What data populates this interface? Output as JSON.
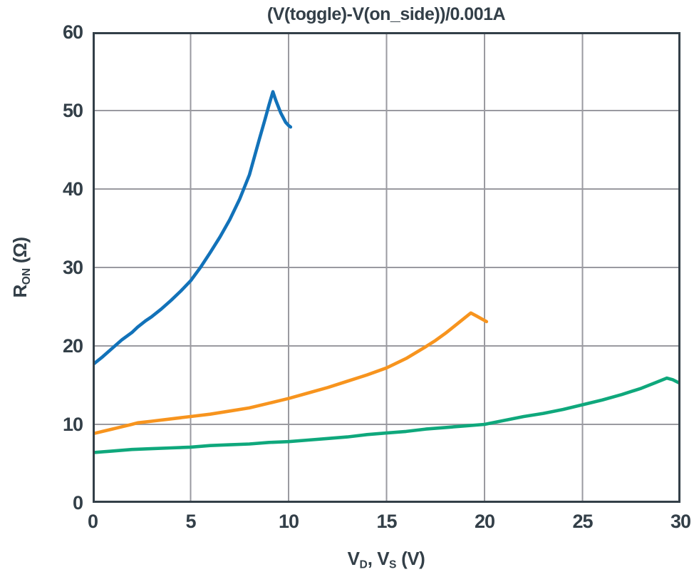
{
  "chart_data": {
    "type": "line",
    "title": "(V(toggle)-V(on_side))/0.001A",
    "ylabel_parts": {
      "main": "R",
      "sub": "ON",
      "rest": " (Ω)"
    },
    "xlabel_parts": {
      "v1": "V",
      "s1": "D",
      "mid": ", V",
      "s2": "S",
      "rest": " (V)"
    },
    "xlim": [
      0,
      30
    ],
    "ylim": [
      0,
      60
    ],
    "xticks": [
      0,
      5,
      10,
      15,
      20,
      25,
      30
    ],
    "yticks": [
      0,
      10,
      20,
      30,
      40,
      50,
      60
    ],
    "grid": true,
    "legend": "none",
    "colors": {
      "axis": "#333F48",
      "grid": "#9A9AA0",
      "text": "#333F48",
      "background": "#FFFFFF"
    },
    "series": [
      {
        "name": "blue-curve",
        "color": "#1272B9",
        "points": [
          [
            0,
            17.6
          ],
          [
            0.5,
            18.6
          ],
          [
            1,
            19.7
          ],
          [
            1.5,
            20.8
          ],
          [
            2,
            21.7
          ],
          [
            2.3,
            22.4
          ],
          [
            2.7,
            23.2
          ],
          [
            3,
            23.7
          ],
          [
            3.5,
            24.7
          ],
          [
            4,
            25.8
          ],
          [
            4.5,
            27.0
          ],
          [
            5,
            28.3
          ],
          [
            5.5,
            30.0
          ],
          [
            6,
            31.9
          ],
          [
            6.5,
            33.9
          ],
          [
            7,
            36.1
          ],
          [
            7.5,
            38.7
          ],
          [
            8,
            41.8
          ],
          [
            8.5,
            46.3
          ],
          [
            8.8,
            48.9
          ],
          [
            9,
            50.7
          ],
          [
            9.2,
            52.4
          ],
          [
            9.35,
            51.3
          ],
          [
            9.6,
            49.7
          ],
          [
            9.85,
            48.5
          ],
          [
            10,
            48.1
          ],
          [
            10.1,
            47.9
          ]
        ]
      },
      {
        "name": "orange-curve",
        "color": "#F7941E",
        "points": [
          [
            0,
            8.8
          ],
          [
            0.5,
            9.1
          ],
          [
            1,
            9.4
          ],
          [
            1.5,
            9.7
          ],
          [
            2,
            10.0
          ],
          [
            2.3,
            10.2
          ],
          [
            3,
            10.4
          ],
          [
            4,
            10.7
          ],
          [
            5,
            11.0
          ],
          [
            6,
            11.3
          ],
          [
            7,
            11.7
          ],
          [
            8,
            12.1
          ],
          [
            9,
            12.7
          ],
          [
            10,
            13.3
          ],
          [
            11,
            14.0
          ],
          [
            12,
            14.7
          ],
          [
            13,
            15.5
          ],
          [
            14,
            16.3
          ],
          [
            15,
            17.2
          ],
          [
            16,
            18.4
          ],
          [
            17,
            19.9
          ],
          [
            17.5,
            20.7
          ],
          [
            18,
            21.6
          ],
          [
            18.5,
            22.6
          ],
          [
            19,
            23.6
          ],
          [
            19.3,
            24.2
          ],
          [
            19.6,
            23.8
          ],
          [
            20.1,
            23.1
          ]
        ]
      },
      {
        "name": "green-curve",
        "color": "#0FA87C",
        "points": [
          [
            0,
            6.4
          ],
          [
            1,
            6.6
          ],
          [
            2,
            6.8
          ],
          [
            3,
            6.9
          ],
          [
            4,
            7.0
          ],
          [
            5,
            7.1
          ],
          [
            6,
            7.3
          ],
          [
            7,
            7.4
          ],
          [
            8,
            7.5
          ],
          [
            9,
            7.7
          ],
          [
            10,
            7.8
          ],
          [
            11,
            8.0
          ],
          [
            12,
            8.2
          ],
          [
            13,
            8.4
          ],
          [
            14,
            8.7
          ],
          [
            15,
            8.9
          ],
          [
            16,
            9.1
          ],
          [
            17,
            9.4
          ],
          [
            18,
            9.6
          ],
          [
            19,
            9.8
          ],
          [
            20,
            10.0
          ],
          [
            21,
            10.5
          ],
          [
            22,
            11.0
          ],
          [
            23,
            11.4
          ],
          [
            24,
            11.9
          ],
          [
            25,
            12.5
          ],
          [
            26,
            13.1
          ],
          [
            27,
            13.8
          ],
          [
            28,
            14.6
          ],
          [
            28.7,
            15.3
          ],
          [
            29.3,
            15.9
          ],
          [
            29.6,
            15.7
          ],
          [
            30,
            15.2
          ]
        ]
      }
    ]
  }
}
